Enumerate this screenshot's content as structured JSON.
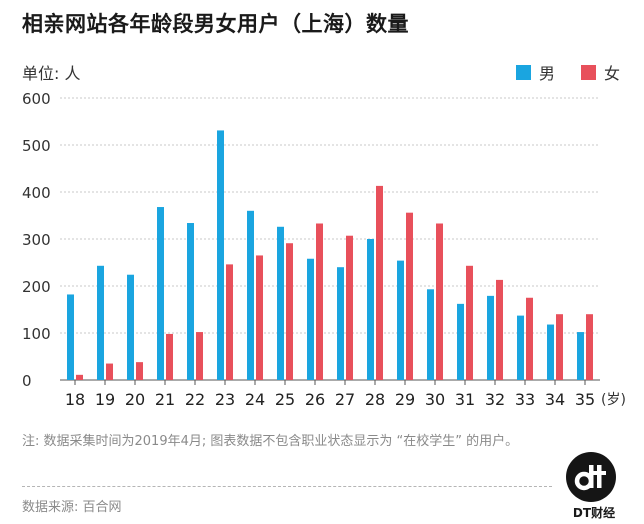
{
  "title": "相亲网站各年龄段男女用户（上海）数量",
  "unit_label": "单位: 人",
  "legend": [
    {
      "label": "男",
      "color": "#1aa5e0"
    },
    {
      "label": "女",
      "color": "#e8505b"
    }
  ],
  "note": "注: 数据采集时间为2019年4月; 图表数据不包含职业状态显示为 “在校学生” 的用户。",
  "source": "数据来源: 百合网",
  "brand": "DT财经",
  "chart_data": {
    "type": "bar",
    "title": "相亲网站各年龄段男女用户（上海）数量",
    "xlabel": "(岁)",
    "ylabel": "单位: 人",
    "ylim": [
      0,
      600
    ],
    "yticks": [
      0,
      100,
      200,
      300,
      400,
      500,
      600
    ],
    "grid": true,
    "legend_position": "top-right",
    "categories": [
      "18",
      "19",
      "20",
      "21",
      "22",
      "23",
      "24",
      "25",
      "26",
      "27",
      "28",
      "29",
      "30",
      "31",
      "32",
      "33",
      "34",
      "35"
    ],
    "series": [
      {
        "name": "男",
        "color": "#1aa5e0",
        "values": [
          182,
          243,
          224,
          368,
          334,
          531,
          360,
          326,
          258,
          240,
          300,
          254,
          193,
          162,
          179,
          137,
          118,
          102
        ]
      },
      {
        "name": "女",
        "color": "#e8505b",
        "values": [
          11,
          35,
          38,
          98,
          102,
          246,
          265,
          291,
          333,
          307,
          413,
          356,
          333,
          243,
          213,
          175,
          140,
          140
        ]
      }
    ]
  }
}
